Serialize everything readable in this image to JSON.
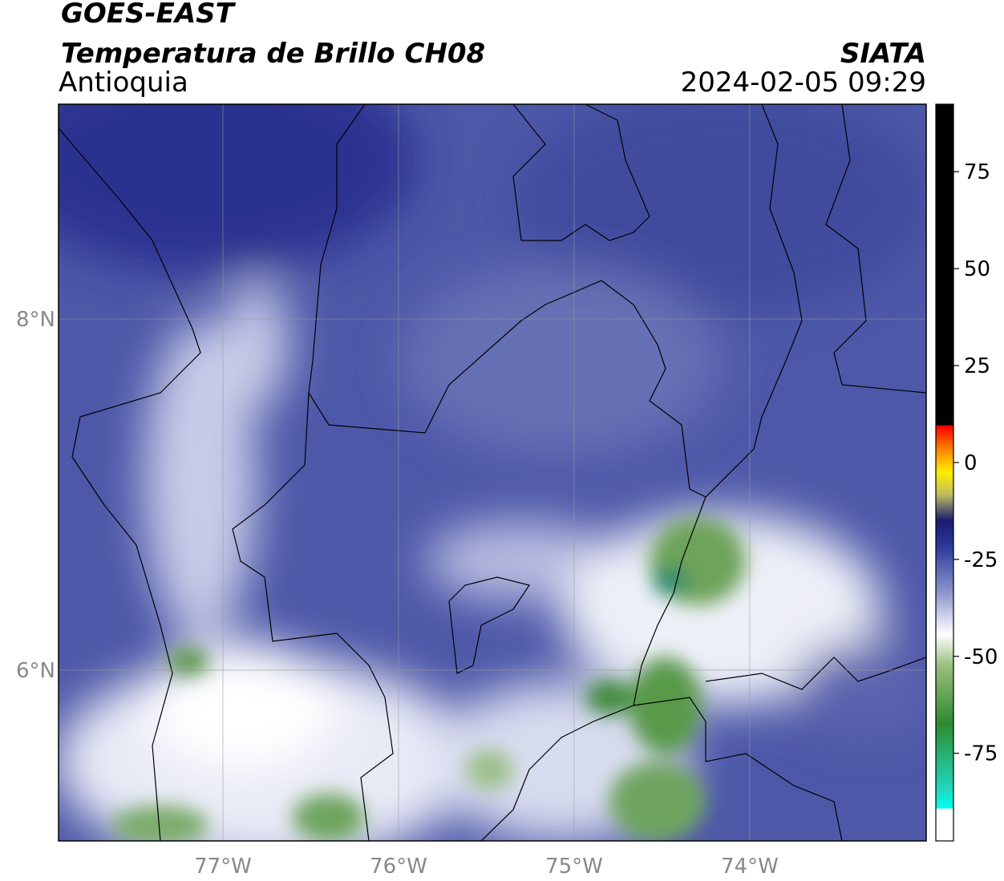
{
  "header": {
    "satellite": "GOES-EAST",
    "product": "Temperatura de Brillo CH08",
    "region": "Antioquia",
    "source": "SIATA",
    "datetime": "2024-02-05 09:29"
  },
  "map": {
    "lon_range": [
      -77.936,
      -72.995
    ],
    "lat_range": [
      5.027,
      9.224
    ],
    "lon_ticks": [
      {
        "value": -77,
        "label": "77°W"
      },
      {
        "value": -76,
        "label": "76°W"
      },
      {
        "value": -75,
        "label": "75°W"
      },
      {
        "value": -74,
        "label": "74°W"
      }
    ],
    "lat_ticks": [
      {
        "value": 8,
        "label": "8°N"
      },
      {
        "value": 6,
        "label": "6°N"
      }
    ]
  },
  "colorbar": {
    "range": [
      -97.6,
      92.4
    ],
    "ticks": [
      75,
      50,
      25,
      0,
      -25,
      -50,
      -75
    ]
  }
}
